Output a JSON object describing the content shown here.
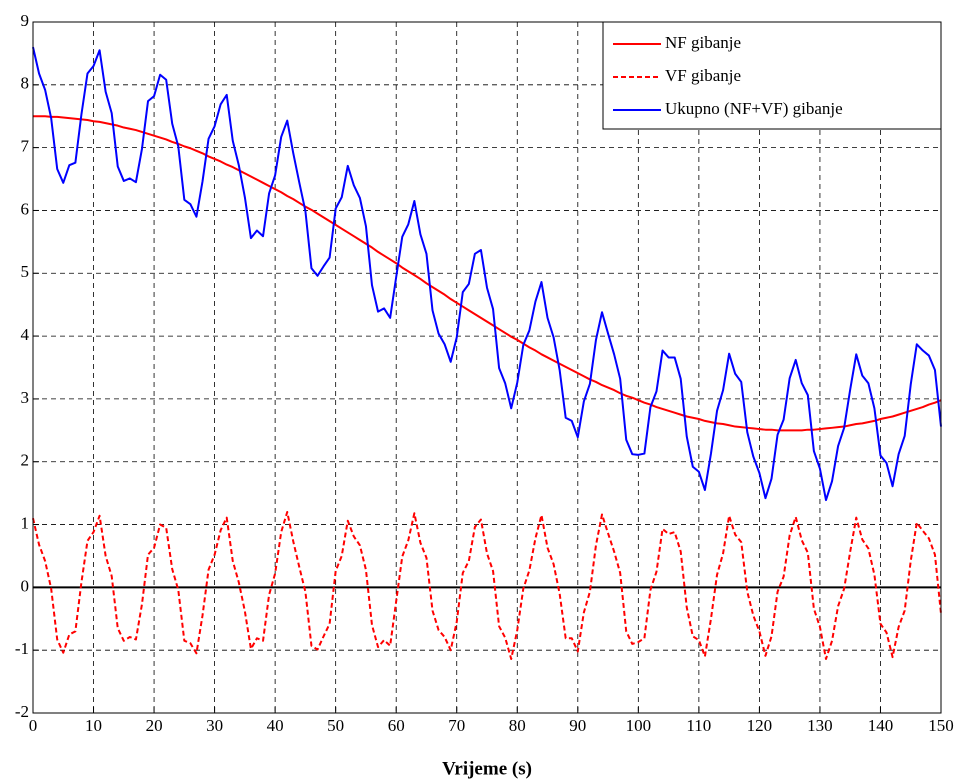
{
  "chart_data": {
    "type": "line",
    "xlabel": "Vrijeme (s)",
    "xlim": [
      0,
      150
    ],
    "xticks": [
      0,
      10,
      20,
      30,
      40,
      50,
      60,
      70,
      80,
      90,
      100,
      110,
      120,
      130,
      140,
      150
    ],
    "ylim": [
      -2,
      9
    ],
    "yticks": [
      -2,
      -1,
      0,
      1,
      2,
      3,
      4,
      5,
      6,
      7,
      8,
      9
    ],
    "grid": true,
    "legend": "upper right",
    "hlines": [
      0
    ],
    "x": [
      0,
      1,
      2,
      3,
      4,
      5,
      6,
      7,
      8,
      9,
      10,
      11,
      12,
      13,
      14,
      15,
      16,
      17,
      18,
      19,
      20,
      21,
      22,
      23,
      24,
      25,
      26,
      27,
      28,
      29,
      30,
      31,
      32,
      33,
      34,
      35,
      36,
      37,
      38,
      39,
      40,
      41,
      42,
      43,
      44,
      45,
      46,
      47,
      48,
      49,
      50,
      51,
      52,
      53,
      54,
      55,
      56,
      57,
      58,
      59,
      60,
      61,
      62,
      63,
      64,
      65,
      66,
      67,
      68,
      69,
      70,
      71,
      72,
      73,
      74,
      75,
      76,
      77,
      78,
      79,
      80,
      81,
      82,
      83,
      84,
      85,
      86,
      87,
      88,
      89,
      90,
      91,
      92,
      93,
      94,
      95,
      96,
      97,
      98,
      99,
      100,
      101,
      102,
      103,
      104,
      105,
      106,
      107,
      108,
      109,
      110,
      111,
      112,
      113,
      114,
      115,
      116,
      117,
      118,
      119,
      120,
      121,
      122,
      123,
      124,
      125,
      126,
      127,
      128,
      129,
      130,
      131,
      132,
      133,
      134,
      135,
      136,
      137,
      138,
      139,
      140,
      141,
      142,
      143,
      144,
      145,
      146,
      147,
      148,
      149,
      150
    ],
    "series": [
      {
        "name": "NF gibanje",
        "color": "#ff0000",
        "dash": false,
        "values": [
          7.5,
          7.5,
          7.5,
          7.49,
          7.49,
          7.48,
          7.47,
          7.46,
          7.45,
          7.44,
          7.42,
          7.41,
          7.39,
          7.37,
          7.35,
          7.32,
          7.3,
          7.28,
          7.25,
          7.22,
          7.19,
          7.16,
          7.13,
          7.09,
          7.06,
          7.02,
          6.99,
          6.95,
          6.91,
          6.86,
          6.82,
          6.78,
          6.73,
          6.69,
          6.64,
          6.59,
          6.54,
          6.49,
          6.44,
          6.39,
          6.34,
          6.29,
          6.23,
          6.18,
          6.12,
          6.06,
          6.01,
          5.95,
          5.89,
          5.83,
          5.77,
          5.71,
          5.65,
          5.59,
          5.53,
          5.47,
          5.41,
          5.34,
          5.28,
          5.22,
          5.16,
          5.09,
          5.03,
          4.97,
          4.91,
          4.84,
          4.78,
          4.72,
          4.66,
          4.59,
          4.53,
          4.47,
          4.41,
          4.35,
          4.29,
          4.23,
          4.17,
          4.11,
          4.05,
          3.99,
          3.94,
          3.88,
          3.82,
          3.77,
          3.71,
          3.66,
          3.61,
          3.56,
          3.51,
          3.46,
          3.41,
          3.36,
          3.31,
          3.27,
          3.22,
          3.18,
          3.14,
          3.09,
          3.05,
          3.02,
          2.98,
          2.94,
          2.91,
          2.87,
          2.84,
          2.81,
          2.78,
          2.75,
          2.72,
          2.7,
          2.68,
          2.65,
          2.63,
          2.61,
          2.6,
          2.58,
          2.56,
          2.55,
          2.54,
          2.53,
          2.52,
          2.51,
          2.51,
          2.5,
          2.5,
          2.5,
          2.5,
          2.5,
          2.51,
          2.51,
          2.52,
          2.53,
          2.54,
          2.55,
          2.56,
          2.58,
          2.6,
          2.61,
          2.63,
          2.65,
          2.68,
          2.7,
          2.72,
          2.75,
          2.78,
          2.81,
          2.84,
          2.87,
          2.91,
          2.94,
          2.98
        ]
      },
      {
        "name": "VF gibanje",
        "color": "#ff0000",
        "dash": true,
        "values": [
          1.1,
          0.68,
          0.42,
          -0.02,
          -0.83,
          -1.04,
          -0.75,
          -0.7,
          0.08,
          0.74,
          0.88,
          1.14,
          0.5,
          0.18,
          -0.65,
          -0.85,
          -0.79,
          -0.83,
          -0.27,
          0.52,
          0.63,
          1.0,
          0.95,
          0.29,
          -0.04,
          -0.85,
          -0.89,
          -1.05,
          -0.45,
          0.28,
          0.52,
          0.91,
          1.11,
          0.42,
          0.08,
          -0.38,
          -0.98,
          -0.81,
          -0.85,
          -0.12,
          0.22,
          0.88,
          1.2,
          0.73,
          0.32,
          -0.07,
          -0.93,
          -0.99,
          -0.78,
          -0.58,
          0.26,
          0.5,
          1.06,
          0.81,
          0.67,
          0.28,
          -0.6,
          -0.95,
          -0.84,
          -0.93,
          -0.22,
          0.49,
          0.75,
          1.18,
          0.71,
          0.47,
          -0.37,
          -0.68,
          -0.79,
          -1.0,
          -0.55,
          0.23,
          0.42,
          0.96,
          1.08,
          0.54,
          0.26,
          -0.62,
          -0.8,
          -1.14,
          -0.68,
          -0.02,
          0.27,
          0.78,
          1.15,
          0.63,
          0.37,
          -0.1,
          -0.81,
          -0.81,
          -1.02,
          -0.4,
          -0.07,
          0.67,
          1.16,
          0.86,
          0.57,
          0.23,
          -0.7,
          -0.9,
          -0.87,
          -0.81,
          -0.04,
          0.25,
          0.93,
          0.85,
          0.88,
          0.57,
          -0.32,
          -0.78,
          -0.84,
          -1.1,
          -0.5,
          0.2,
          0.54,
          1.14,
          0.84,
          0.72,
          -0.07,
          -0.45,
          -0.7,
          -1.09,
          -0.78,
          -0.07,
          0.17,
          0.83,
          1.12,
          0.75,
          0.55,
          -0.34,
          -0.63,
          -1.14,
          -0.85,
          -0.3,
          -0.02,
          0.57,
          1.11,
          0.76,
          0.62,
          0.2,
          -0.58,
          -0.72,
          -1.11,
          -0.63,
          -0.37,
          0.42,
          1.03,
          0.9,
          0.78,
          0.52,
          -0.42
        ]
      },
      {
        "name": "Ukupno (NF+VF) gibanje",
        "color": "#0000ff",
        "dash": false,
        "values": [
          8.6,
          8.18,
          7.92,
          7.47,
          6.66,
          6.44,
          6.72,
          6.76,
          7.53,
          8.18,
          8.3,
          8.55,
          7.89,
          7.55,
          6.7,
          6.47,
          6.51,
          6.45,
          6.98,
          7.74,
          7.82,
          8.16,
          8.08,
          7.38,
          7.02,
          6.17,
          6.1,
          5.9,
          6.46,
          7.14,
          7.34,
          7.69,
          7.84,
          7.11,
          6.72,
          6.21,
          5.56,
          5.68,
          5.59,
          6.27,
          6.56,
          7.17,
          7.43,
          6.91,
          6.44,
          5.99,
          5.08,
          4.96,
          5.11,
          5.25,
          6.03,
          6.21,
          6.71,
          6.4,
          6.2,
          5.75,
          4.81,
          4.39,
          4.44,
          4.29,
          4.94,
          5.58,
          5.78,
          6.15,
          5.62,
          5.31,
          4.41,
          4.04,
          3.87,
          3.59,
          3.98,
          4.7,
          4.83,
          5.31,
          5.37,
          4.77,
          4.43,
          3.49,
          3.25,
          2.85,
          3.26,
          3.86,
          4.09,
          4.55,
          4.86,
          4.29,
          3.98,
          3.46,
          2.7,
          2.65,
          2.39,
          2.96,
          3.24,
          3.94,
          4.38,
          4.04,
          3.71,
          3.32,
          2.35,
          2.12,
          2.11,
          2.13,
          2.87,
          3.12,
          3.77,
          3.66,
          3.66,
          3.32,
          2.4,
          1.92,
          1.84,
          1.55,
          2.13,
          2.81,
          3.14,
          3.72,
          3.4,
          3.27,
          2.47,
          2.08,
          1.82,
          1.42,
          1.73,
          2.43,
          2.67,
          3.33,
          3.62,
          3.25,
          3.06,
          2.17,
          1.89,
          1.39,
          1.69,
          2.25,
          2.54,
          3.15,
          3.71,
          3.37,
          3.25,
          2.85,
          2.1,
          1.98,
          1.61,
          2.12,
          2.41,
          3.23,
          3.87,
          3.77,
          3.69,
          3.46,
          2.56
        ]
      }
    ]
  }
}
